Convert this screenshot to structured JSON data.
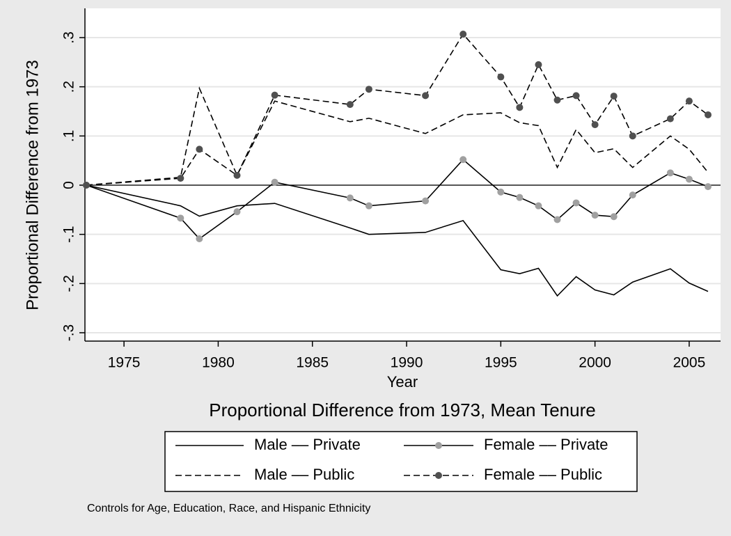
{
  "chart_data": {
    "type": "line",
    "y_label": "Proportional Difference from 1973",
    "x_label": "Year",
    "title": "Proportional Difference from 1973, Mean Tenure",
    "note": "Controls for Age, Education, Race, and Hispanic Ethnicity",
    "x": [
      1973,
      1978,
      1979,
      1981,
      1983,
      1987,
      1988,
      1991,
      1993,
      1995,
      1996,
      1997,
      1998,
      1999,
      2000,
      2001,
      2002,
      2004,
      2005,
      2006
    ],
    "series": [
      {
        "name": "Male –– Private",
        "color": "#000000",
        "dash": false,
        "marker_color": null,
        "values": [
          0,
          -0.042,
          -0.063,
          -0.042,
          -0.037,
          -0.087,
          -0.1,
          -0.096,
          -0.072,
          -0.172,
          -0.18,
          -0.169,
          -0.225,
          -0.186,
          -0.213,
          -0.223,
          -0.197,
          -0.17,
          -0.199,
          -0.216
        ]
      },
      {
        "name": "Female –– Private",
        "color": "#000000",
        "dash": false,
        "marker_color": "#a0a0a0",
        "values": [
          0,
          -0.067,
          -0.109,
          -0.054,
          0.006,
          -0.026,
          -0.042,
          -0.032,
          0.052,
          -0.014,
          -0.025,
          -0.042,
          -0.07,
          -0.036,
          -0.061,
          -0.064,
          -0.02,
          0.025,
          0.012,
          -0.003
        ]
      },
      {
        "name": "Male –– Public",
        "color": "#000000",
        "dash": true,
        "marker_color": null,
        "values": [
          0,
          0.016,
          0.197,
          0.02,
          0.171,
          0.129,
          0.136,
          0.105,
          0.143,
          0.147,
          0.127,
          0.121,
          0.036,
          0.113,
          0.066,
          0.074,
          0.036,
          0.1,
          0.073,
          0.026
        ]
      },
      {
        "name": "Female –– Public",
        "color": "#000000",
        "dash": true,
        "marker_color": "#505050",
        "values": [
          0,
          0.014,
          0.073,
          0.02,
          0.183,
          0.164,
          0.195,
          0.182,
          0.307,
          0.22,
          0.158,
          0.245,
          0.173,
          0.182,
          0.123,
          0.181,
          0.1,
          0.135,
          0.171,
          0.143
        ]
      }
    ],
    "xlim": [
      1973,
      2006
    ],
    "xticks": [
      1975,
      1980,
      1985,
      1990,
      1995,
      2000,
      2005
    ],
    "ylim": [
      -0.3,
      0.3
    ],
    "yticks": [
      {
        "value": 0.3,
        "label": ".3"
      },
      {
        "value": 0.2,
        "label": ".2"
      },
      {
        "value": 0.1,
        "label": ".1"
      },
      0,
      {
        "value": -0.1,
        "label": "-.1"
      },
      {
        "value": -0.2,
        "label": "-.2"
      },
      {
        "value": -0.3,
        "label": "-.3"
      }
    ],
    "yline": 0,
    "grid": true,
    "legend_position": "bottom"
  }
}
